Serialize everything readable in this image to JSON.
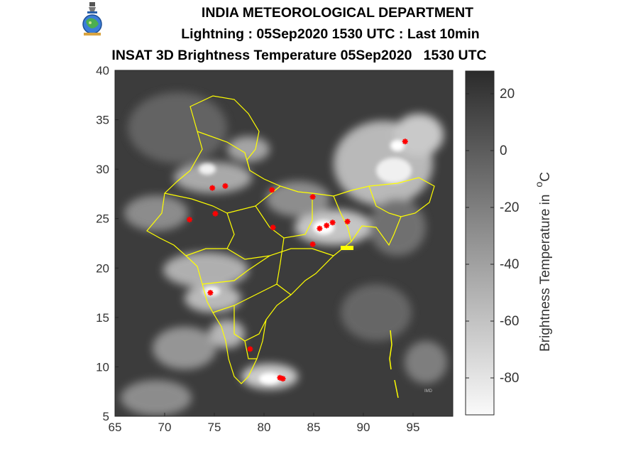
{
  "header": {
    "org": "INDIA METEOROLOGICAL DEPARTMENT",
    "line2": "Lightning : 05Sep2020 1530 UTC : Last 10min",
    "line3": "INSAT 3D Brightness Temperature 05Sep2020   1530 UTC"
  },
  "map": {
    "lon_ticks": [
      "65",
      "70",
      "75",
      "80",
      "85",
      "90",
      "95"
    ],
    "lat_ticks": [
      "40",
      "35",
      "30",
      "25",
      "20",
      "15",
      "10",
      "5"
    ],
    "lon_range": [
      65,
      99
    ],
    "lat_range": [
      5,
      40
    ]
  },
  "colorbar": {
    "label": "Brightness Temperature in",
    "unit_sup": "o",
    "unit": "C",
    "ticks": [
      "20",
      "0",
      "-20",
      "-40",
      "-60",
      "-80"
    ],
    "range": [
      -93,
      28
    ]
  },
  "lightning_strikes": [
    {
      "lon": 94.2,
      "lat": 32.8
    },
    {
      "lon": 74.8,
      "lat": 28.1
    },
    {
      "lon": 76.1,
      "lat": 28.3
    },
    {
      "lon": 80.8,
      "lat": 27.9
    },
    {
      "lon": 84.9,
      "lat": 27.2
    },
    {
      "lon": 75.1,
      "lat": 25.5
    },
    {
      "lon": 72.5,
      "lat": 24.9
    },
    {
      "lon": 80.9,
      "lat": 24.1
    },
    {
      "lon": 85.6,
      "lat": 24.0
    },
    {
      "lon": 86.3,
      "lat": 24.3
    },
    {
      "lon": 86.9,
      "lat": 24.6
    },
    {
      "lon": 88.4,
      "lat": 24.7
    },
    {
      "lon": 84.9,
      "lat": 22.4
    },
    {
      "lon": 74.6,
      "lat": 17.5
    },
    {
      "lon": 78.6,
      "lat": 11.8
    },
    {
      "lon": 81.6,
      "lat": 8.9
    },
    {
      "lon": 81.9,
      "lat": 8.8
    }
  ],
  "colors": {
    "lightning": "#ff0000",
    "boundary": "#ffff00",
    "axis": "#262626"
  }
}
